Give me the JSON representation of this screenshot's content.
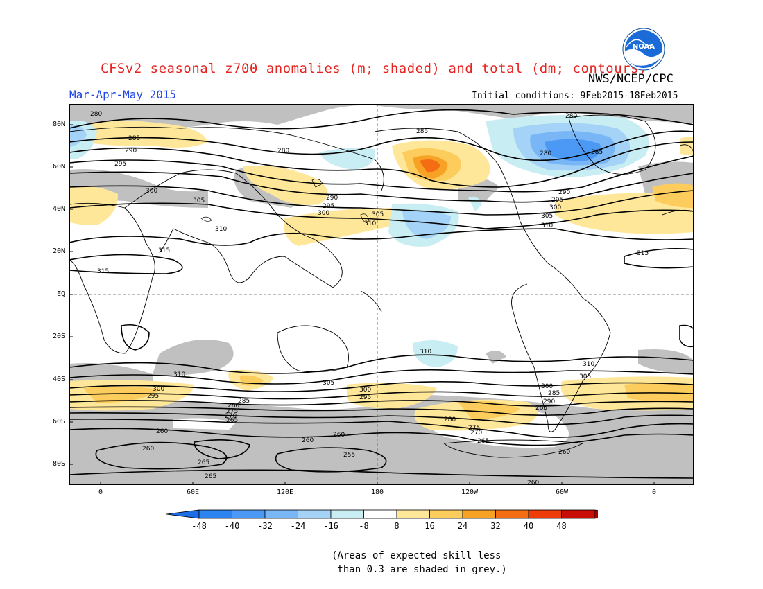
{
  "title": "CFSv2 seasonal z700 anomalies (m; shaded) and total (dm; contours)",
  "agency": "NWS/NCEP/CPC",
  "logo_text": "NOAA",
  "period": "Mar-Apr-May 2015",
  "initial_conditions": "Initial conditions: 9Feb2015-18Feb2015",
  "latitude_labels": [
    "80N",
    "60N",
    "40N",
    "20N",
    "EQ",
    "20S",
    "40S",
    "60S",
    "80S"
  ],
  "longitude_labels": [
    "0",
    "60E",
    "120E",
    "180",
    "120W",
    "60W",
    "0"
  ],
  "colorbar": {
    "labels": [
      "-48",
      "-40",
      "-32",
      "-24",
      "-16",
      "-8",
      "8",
      "16",
      "24",
      "32",
      "40",
      "48"
    ],
    "colors": [
      "#1a6ee8",
      "#2d83ef",
      "#4b99f4",
      "#78b6f6",
      "#a4d3f7",
      "#c8edf3",
      "#ffffff",
      "#ffe79a",
      "#fccc5c",
      "#f7a125",
      "#f56d12",
      "#ed3b09",
      "#c90f05",
      "#a80000"
    ]
  },
  "contour_labels": [
    "255",
    "260",
    "265",
    "270",
    "275",
    "280",
    "285",
    "290",
    "295",
    "300",
    "305",
    "310",
    "315"
  ],
  "skill_note": "(Areas of expected skill less\n than 0.3 are shaded in grey.)",
  "colors": {
    "title": "#e8231f",
    "period": "#1f45e6",
    "grey_mask": "#c0c0c0"
  }
}
